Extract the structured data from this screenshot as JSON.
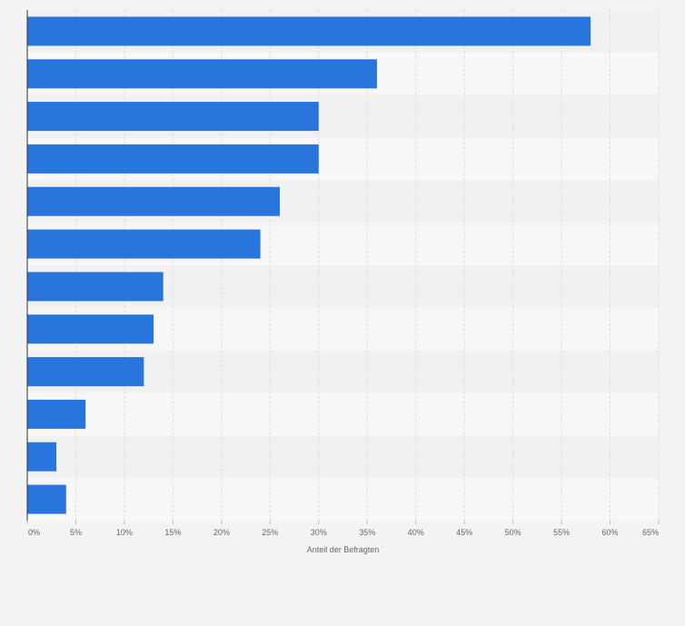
{
  "chart_data": {
    "type": "bar",
    "orientation": "horizontal",
    "title": "",
    "xlabel": "Anteil der Befragten",
    "ylabel": "",
    "xlim": [
      0,
      65
    ],
    "x_ticks": [
      0,
      5,
      10,
      15,
      20,
      25,
      30,
      35,
      40,
      45,
      50,
      55,
      60,
      65
    ],
    "x_tick_labels": [
      "0%",
      "5%",
      "10%",
      "15%",
      "20%",
      "25%",
      "30%",
      "35%",
      "40%",
      "45%",
      "50%",
      "55%",
      "60%",
      "65%"
    ],
    "categories": [
      "",
      "",
      "",
      "",
      "",
      "",
      "",
      "",
      "",
      "",
      "",
      ""
    ],
    "values": [
      58,
      36,
      30,
      30,
      26,
      24,
      14,
      13,
      12,
      6,
      3,
      4
    ],
    "grid": true,
    "legend": "none",
    "colors": {
      "bar": "#2876dd",
      "row_light": "#f7f7f7",
      "row_dark": "#f1f1f1",
      "grid": "#dddddd",
      "axis": "#333333"
    }
  }
}
